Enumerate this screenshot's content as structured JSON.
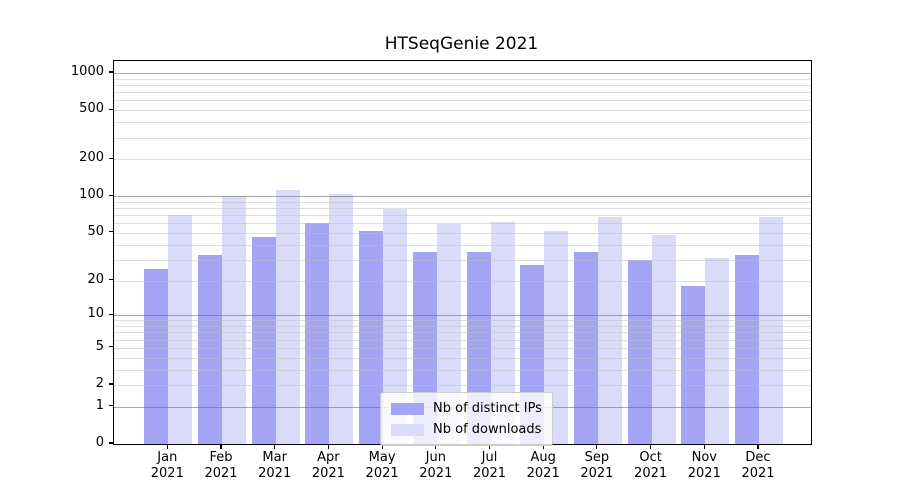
{
  "chart_data": {
    "type": "bar",
    "title": "HTSeqGenie 2021",
    "categories": [
      "Jan",
      "Feb",
      "Mar",
      "Apr",
      "May",
      "Jun",
      "Jul",
      "Aug",
      "Sep",
      "Oct",
      "Nov",
      "Dec"
    ],
    "x_year_label": "2021",
    "series": [
      {
        "name": "Nb of distinct IPs",
        "color": "#a4a4f4",
        "values": [
          25,
          33,
          46,
          60,
          52,
          35,
          35,
          27,
          35,
          30,
          18,
          33
        ]
      },
      {
        "name": "Nb of downloads",
        "color": "#dadaf9",
        "values": [
          70,
          101,
          113,
          105,
          78,
          59,
          62,
          52,
          68,
          48,
          31,
          67
        ]
      }
    ],
    "yscale": "log1p",
    "ylim": [
      0,
      1250
    ],
    "ytick_values": [
      0,
      1,
      2,
      5,
      10,
      20,
      50,
      100,
      200,
      500,
      1000
    ],
    "ytick_labels": [
      "0",
      "1",
      "2",
      "5",
      "10",
      "20",
      "50",
      "100",
      "200",
      "500",
      "1000"
    ],
    "major_gridlines": [
      1,
      10,
      100,
      1000
    ],
    "minor_gridlines": [
      2,
      3,
      4,
      5,
      6,
      7,
      8,
      9,
      20,
      30,
      40,
      50,
      60,
      70,
      80,
      90,
      200,
      300,
      400,
      500,
      600,
      700,
      800,
      900
    ],
    "grid": "horizontal",
    "legend_position": "lower center",
    "xlabel": "",
    "ylabel": ""
  }
}
